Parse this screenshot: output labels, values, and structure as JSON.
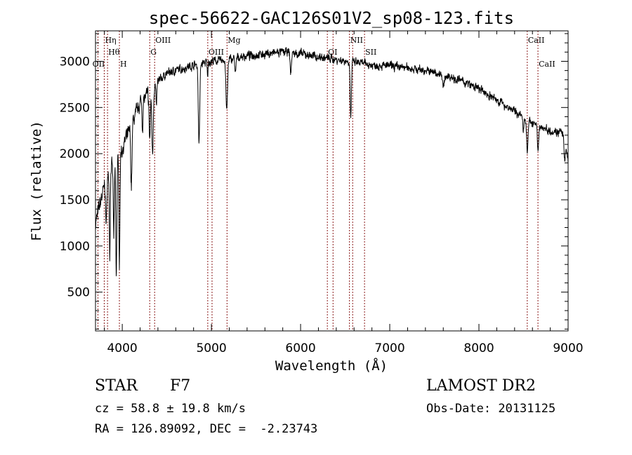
{
  "chart_data": {
    "type": "line",
    "title": "spec-56622-GAC126S01V2_sp08-123.fits",
    "xlabel": "Wavelength (Å)",
    "ylabel": "Flux (relative)",
    "xlim": [
      3700,
      9000
    ],
    "ylim": [
      80,
      3330
    ],
    "xticks": [
      4000,
      5000,
      6000,
      7000,
      8000,
      9000
    ],
    "yticks": [
      500,
      1000,
      1500,
      2000,
      2500,
      3000
    ],
    "grid": false,
    "line_color": "#000000",
    "marker_color": "#8b1a1a",
    "continuum": {
      "x": [
        3700,
        3800,
        3900,
        4000,
        4100,
        4200,
        4300,
        4400,
        4500,
        4600,
        4700,
        4800,
        5000,
        5200,
        5400,
        5600,
        5800,
        6000,
        6200,
        6400,
        6600,
        6800,
        7000,
        7200,
        7400,
        7600,
        7800,
        8000,
        8200,
        8400,
        8600,
        8800,
        9000
      ],
      "y": [
        1250,
        1650,
        1900,
        2050,
        2300,
        2550,
        2650,
        2780,
        2870,
        2900,
        2930,
        2960,
        3000,
        3020,
        3060,
        3080,
        3100,
        3080,
        3050,
        3020,
        2990,
        2960,
        2950,
        2930,
        2900,
        2860,
        2790,
        2700,
        2580,
        2460,
        2330,
        2250,
        2220
      ]
    },
    "absorption_lines": [
      {
        "center": 3820,
        "depth": 500,
        "width": 6
      },
      {
        "center": 3860,
        "depth": 900,
        "width": 5
      },
      {
        "center": 3905,
        "depth": 800,
        "width": 6
      },
      {
        "center": 3933,
        "depth": 1300,
        "width": 6
      },
      {
        "center": 3968,
        "depth": 1150,
        "width": 6
      },
      {
        "center": 4102,
        "depth": 650,
        "width": 7
      },
      {
        "center": 4227,
        "depth": 300,
        "width": 5
      },
      {
        "center": 4308,
        "depth": 500,
        "width": 7
      },
      {
        "center": 4340,
        "depth": 700,
        "width": 8
      },
      {
        "center": 4383,
        "depth": 250,
        "width": 5
      },
      {
        "center": 4861,
        "depth": 850,
        "width": 8
      },
      {
        "center": 4957,
        "depth": 150,
        "width": 5
      },
      {
        "center": 5172,
        "depth": 550,
        "width": 9
      },
      {
        "center": 5270,
        "depth": 180,
        "width": 6
      },
      {
        "center": 5890,
        "depth": 220,
        "width": 7
      },
      {
        "center": 6563,
        "depth": 600,
        "width": 7
      },
      {
        "center": 7600,
        "depth": 130,
        "width": 12
      },
      {
        "center": 8498,
        "depth": 180,
        "width": 6
      },
      {
        "center": 8542,
        "depth": 350,
        "width": 7
      },
      {
        "center": 8662,
        "depth": 300,
        "width": 7
      },
      {
        "center": 8960,
        "depth": 250,
        "width": 8
      }
    ],
    "noise_amplitude": 60,
    "marker_lines": [
      {
        "x": 3727,
        "label": "OII",
        "row": 3
      },
      {
        "x": 3798,
        "label": "Hη",
        "row": 1
      },
      {
        "x": 3835,
        "label": "Hθ",
        "row": 2
      },
      {
        "x": 3968,
        "label": "H",
        "row": 3
      },
      {
        "x": 4308,
        "label": "G",
        "row": 2
      },
      {
        "x": 4363,
        "label": "OIII",
        "row": 1
      },
      {
        "x": 4959,
        "label": "OIII",
        "row": 2
      },
      {
        "x": 5007,
        "label": "",
        "row": 2
      },
      {
        "x": 5175,
        "label": "Mg",
        "row": 1
      },
      {
        "x": 6300,
        "label": "OI",
        "row": 2
      },
      {
        "x": 6364,
        "label": "",
        "row": 2
      },
      {
        "x": 6548,
        "label": "NII",
        "row": 1
      },
      {
        "x": 6584,
        "label": "",
        "row": 1
      },
      {
        "x": 6717,
        "label": "SII",
        "row": 2
      },
      {
        "x": 8542,
        "label": "CaII",
        "row": 1
      },
      {
        "x": 8662,
        "label": "CaII",
        "row": 3
      }
    ]
  },
  "info": {
    "object_class": "STAR",
    "subclass": "F7",
    "survey": "LAMOST DR2",
    "redshift": "cz = 58.8 ± 19.8 km/s",
    "obs_date": "Obs-Date: 20131125",
    "coords": "RA = 126.89092, DEC =  -2.23743"
  }
}
